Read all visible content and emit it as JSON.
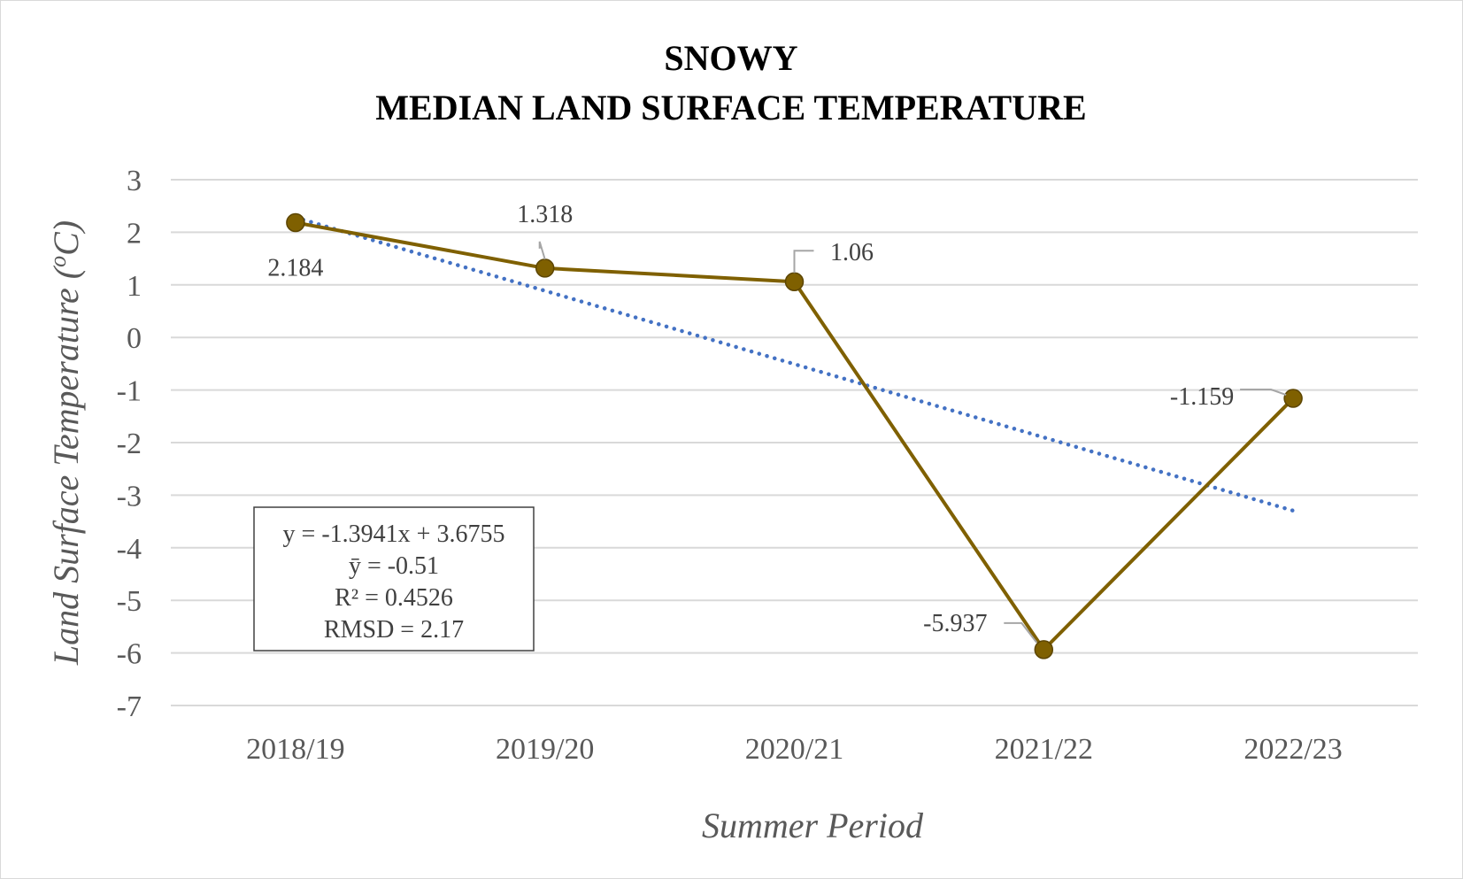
{
  "chart_data": {
    "type": "line",
    "title_lines": [
      "SNOWY",
      "MEDIAN LAND SURFACE TEMPERATURE"
    ],
    "xlabel": "Summer Period",
    "ylabel": "Land Surface Temperature (",
    "ylabel_sup": "o",
    "ylabel_unit": "C)",
    "categories": [
      "2018/19",
      "2019/20",
      "2020/21",
      "2021/22",
      "2022/23"
    ],
    "ylim": [
      -7,
      3
    ],
    "yticks": [
      "3",
      "2",
      "1",
      "0",
      "-1",
      "-2",
      "-3",
      "-4",
      "-5",
      "-6",
      "-7"
    ],
    "grid": true,
    "series": [
      {
        "values": [
          2.184,
          1.318,
          1.06,
          -5.937,
          -1.159
        ],
        "labels": [
          "2.184",
          "1.318",
          "1.06",
          "-5.937",
          "-1.159"
        ],
        "color": "#7F6000"
      }
    ],
    "trendline": {
      "type": "linear",
      "slope": -1.3941,
      "intercept": 3.6755,
      "color": "#4472C4",
      "style": "dotted"
    },
    "stats_box": [
      "y = -1.3941x + 3.6755",
      "ȳ = -0.51",
      "R² = 0.4526",
      "RMSD = 2.17"
    ]
  }
}
